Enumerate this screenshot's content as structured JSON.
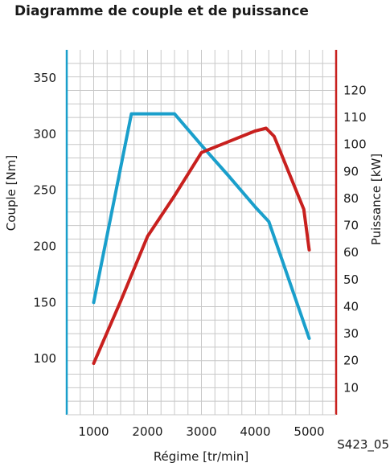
{
  "chart_data": {
    "type": "line",
    "title": "Diagramme de couple et de puissance",
    "xlabel": "Régime [tr/min]",
    "ylabel_left": "Couple [Nm]",
    "ylabel_right": "Puissance [kW]",
    "reference": "S423_05",
    "xlim": [
      500,
      5500
    ],
    "ylim_left": [
      50,
      375
    ],
    "ylim_right": [
      0,
      135
    ],
    "x_ticks": [
      1000,
      2000,
      3000,
      4000,
      5000
    ],
    "y_left_ticks": [
      100,
      150,
      200,
      250,
      300,
      350
    ],
    "y_right_ticks": [
      10,
      20,
      30,
      40,
      50,
      60,
      70,
      80,
      90,
      100,
      110,
      120
    ],
    "grid": true,
    "colors": {
      "torque": "#1a9fcb",
      "power": "#c8201e",
      "grid": "#c8c8c8",
      "left_axis": "#1a9fcb",
      "right_axis": "#c8201e"
    },
    "series": [
      {
        "key": "torque",
        "axis": "left",
        "x": [
          1000,
          1700,
          2500,
          3000,
          3500,
          4000,
          4250,
          5000
        ],
        "y": [
          150,
          318,
          318,
          290,
          263,
          235,
          222,
          118
        ]
      },
      {
        "key": "power",
        "axis": "right",
        "x": [
          1000,
          1500,
          2000,
          2500,
          3000,
          3500,
          4000,
          4200,
          4350,
          4900,
          5000
        ],
        "y": [
          19,
          42,
          66,
          81,
          97,
          101,
          105,
          106,
          103,
          76,
          61
        ]
      }
    ]
  }
}
